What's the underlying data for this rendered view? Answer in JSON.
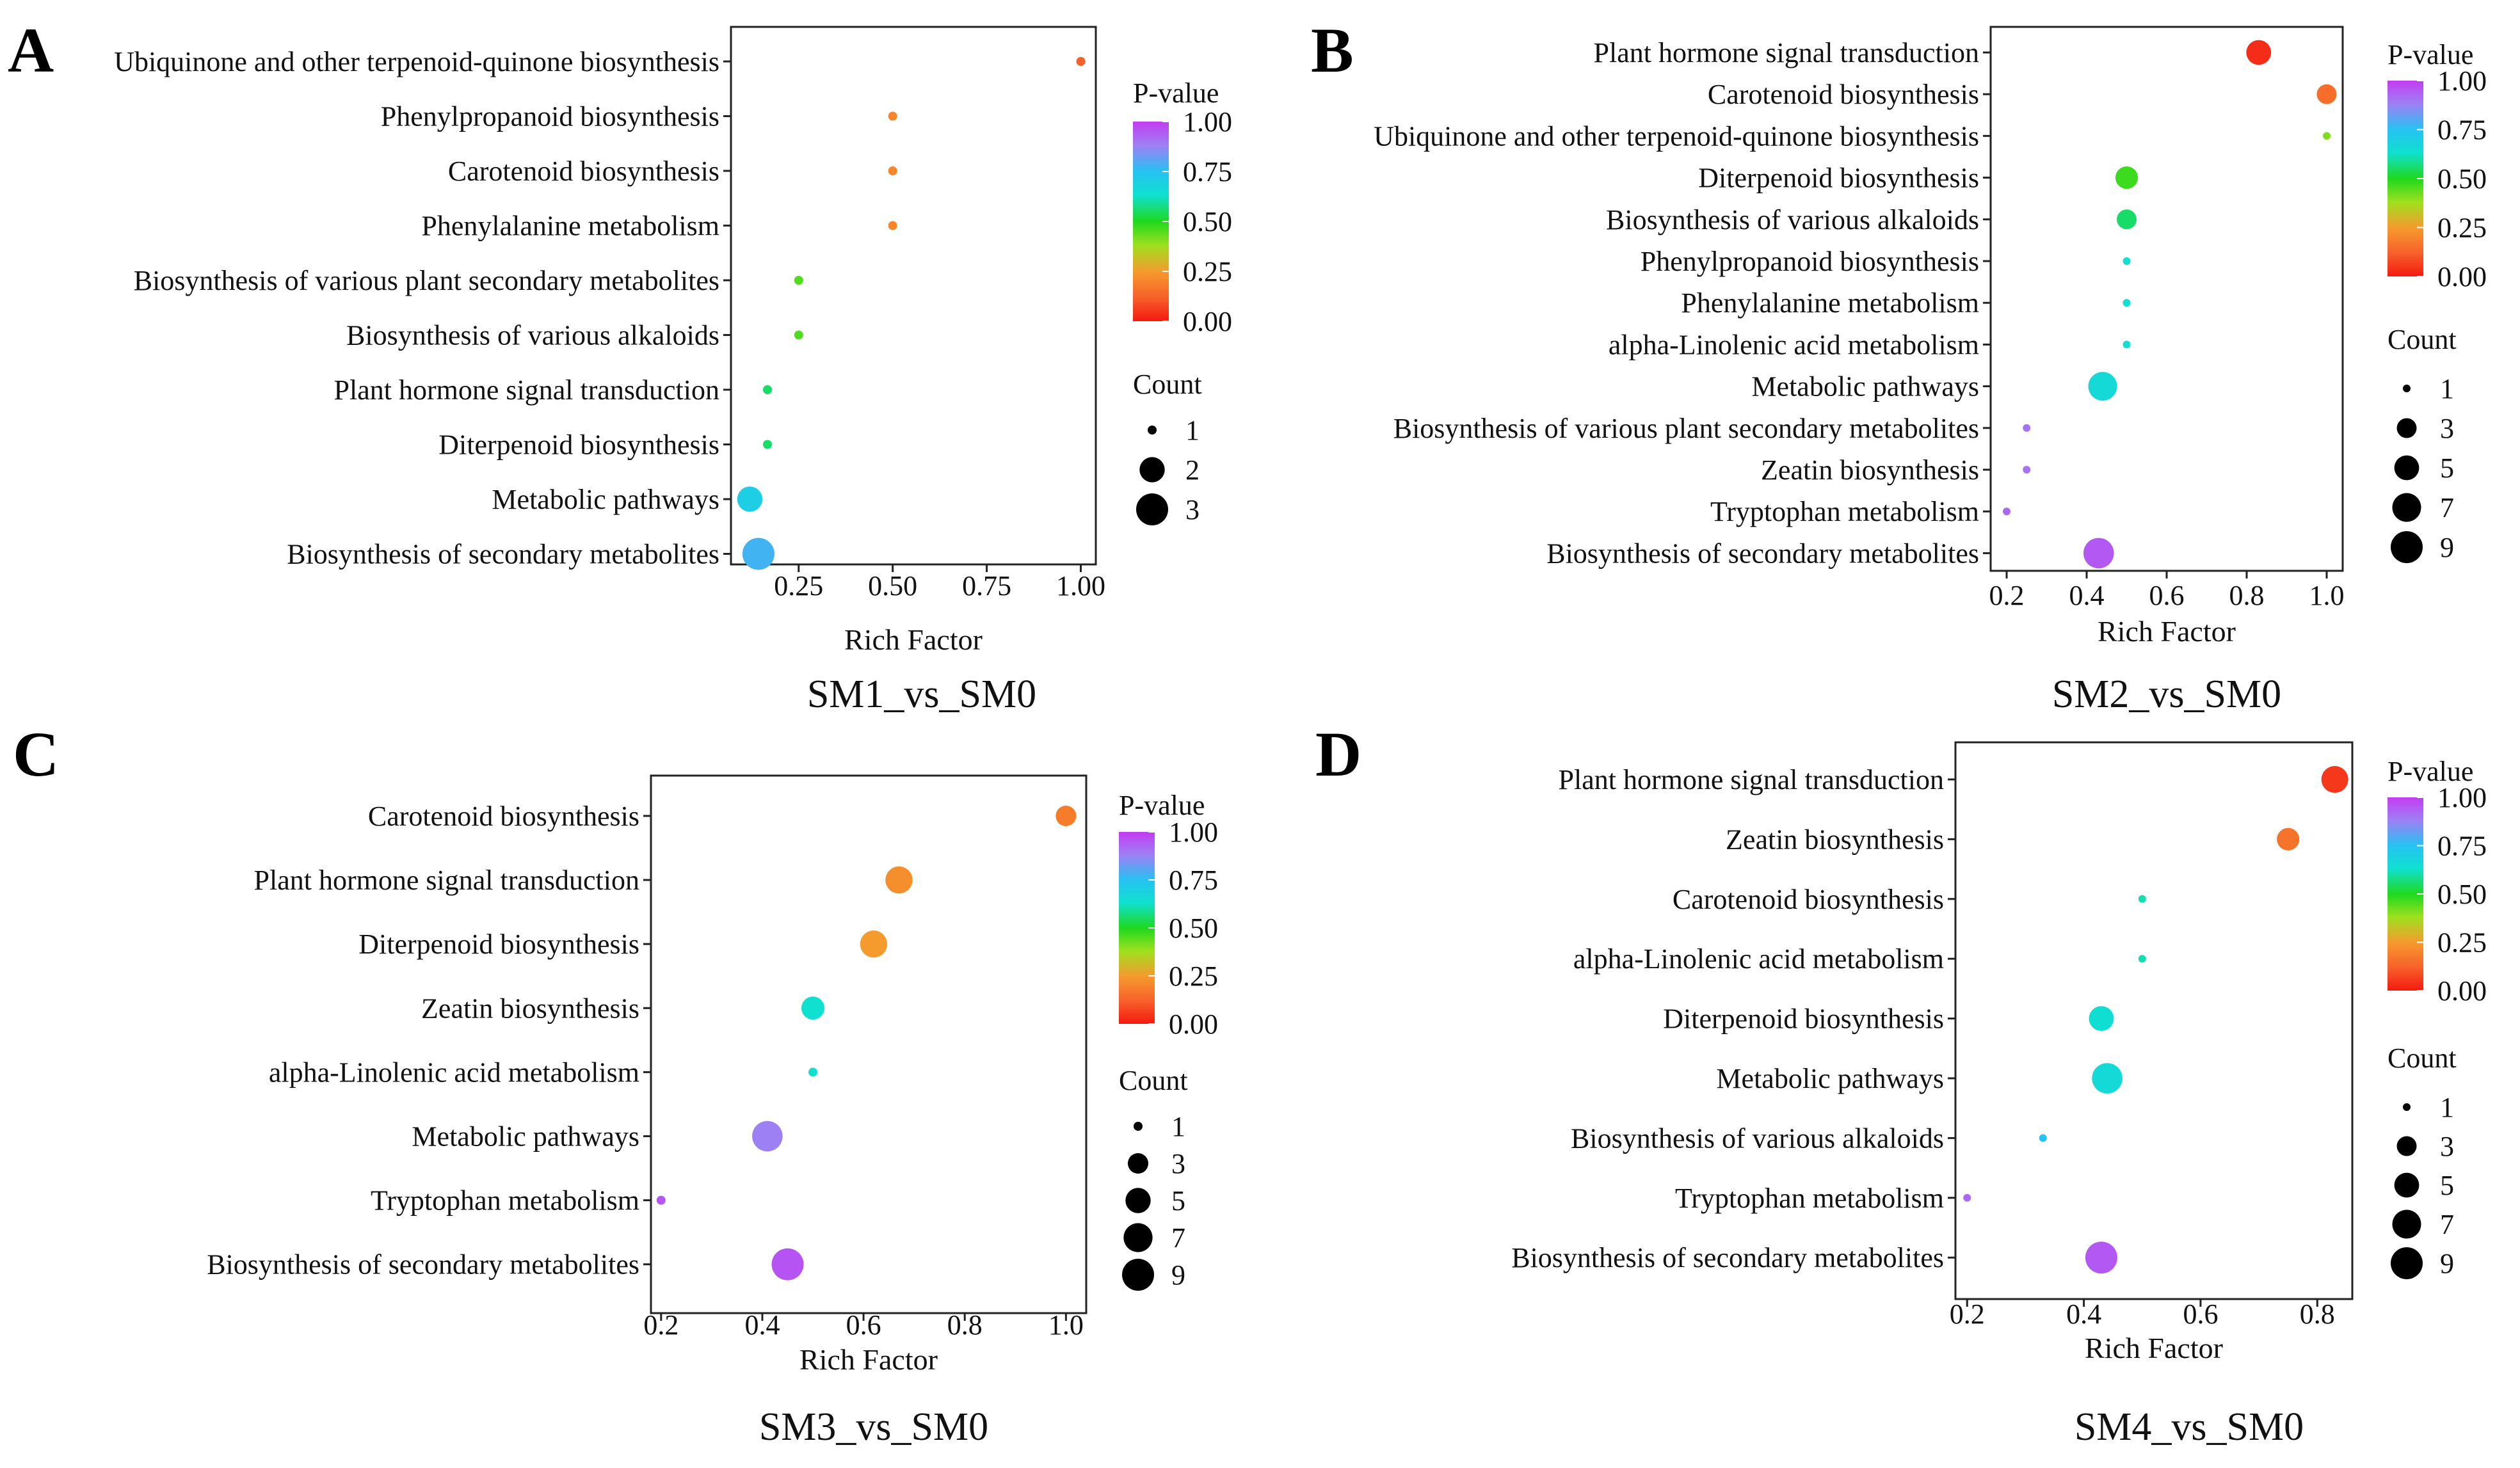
{
  "figure": {
    "count_legend_title": "Count",
    "pvalue_legend_title": "P-value",
    "x_axis_label": "Rich Factor",
    "colorbar_ticks": [
      "1.00",
      "0.75",
      "0.50",
      "0.25",
      "0.00"
    ]
  },
  "chart_data": [
    {
      "type": "scatter",
      "panel": "A",
      "title": "SM1_vs_SM0",
      "xlabel": "Rich Factor",
      "ylabel": "",
      "xlim": [
        0.07,
        1.04
      ],
      "x_ticks": [
        "0.25",
        "0.50",
        "0.75",
        "1.00"
      ],
      "x_tick_values": [
        0.25,
        0.5,
        0.75,
        1.0
      ],
      "count_legend": [
        "1",
        "2",
        "3"
      ],
      "count_legend_values": [
        1,
        2,
        3
      ],
      "count_max": 3,
      "categories": [
        "Ubiquinone and other terpenoid-quinone biosynthesis",
        "Phenylpropanoid biosynthesis",
        "Carotenoid biosynthesis",
        "Phenylalanine metabolism",
        "Biosynthesis of various plant secondary metabolites",
        "Biosynthesis of various alkaloids",
        "Plant hormone signal transduction",
        "Diterpenoid biosynthesis",
        "Metabolic pathways",
        "Biosynthesis of secondary metabolites"
      ],
      "rich_factor": [
        1.0,
        0.5,
        0.5,
        0.5,
        0.25,
        0.25,
        0.167,
        0.167,
        0.12,
        0.143
      ],
      "count": [
        1,
        1,
        1,
        1,
        1,
        1,
        1,
        1,
        2,
        3
      ],
      "p_value": [
        0.12,
        0.2,
        0.2,
        0.2,
        0.45,
        0.45,
        0.55,
        0.55,
        0.7,
        0.78
      ]
    },
    {
      "type": "scatter",
      "panel": "B",
      "title": "SM2_vs_SM0",
      "xlabel": "Rich Factor",
      "ylabel": "",
      "xlim": [
        0.16,
        1.04
      ],
      "x_ticks": [
        "0.2",
        "0.4",
        "0.6",
        "0.8",
        "1.0"
      ],
      "x_tick_values": [
        0.2,
        0.4,
        0.6,
        0.8,
        1.0
      ],
      "count_legend": [
        "1",
        "3",
        "5",
        "7",
        "9"
      ],
      "count_legend_values": [
        1,
        3,
        5,
        7,
        9
      ],
      "count_max": 9,
      "categories": [
        "Plant hormone signal transduction",
        "Carotenoid biosynthesis",
        "Ubiquinone and other terpenoid-quinone biosynthesis",
        "Diterpenoid biosynthesis",
        "Biosynthesis of various alkaloids",
        "Phenylpropanoid biosynthesis",
        "Phenylalanine metabolism",
        "alpha-Linolenic acid metabolism",
        "Metabolic pathways",
        "Biosynthesis of various plant secondary metabolites",
        "Zeatin biosynthesis",
        "Tryptophan metabolism",
        "Biosynthesis of secondary metabolites"
      ],
      "rich_factor": [
        0.83,
        1.0,
        1.0,
        0.5,
        0.5,
        0.5,
        0.5,
        0.5,
        0.44,
        0.25,
        0.25,
        0.2,
        0.43
      ],
      "count": [
        5,
        3,
        1,
        4,
        3,
        1,
        1,
        1,
        7,
        1,
        1,
        1,
        8
      ],
      "p_value": [
        0.03,
        0.15,
        0.4,
        0.47,
        0.55,
        0.62,
        0.62,
        0.62,
        0.65,
        0.9,
        0.9,
        0.92,
        0.95
      ]
    },
    {
      "type": "scatter",
      "panel": "C",
      "title": "SM3_vs_SM0",
      "xlabel": "Rich Factor",
      "ylabel": "",
      "xlim": [
        0.18,
        1.04
      ],
      "x_ticks": [
        "0.2",
        "0.4",
        "0.6",
        "0.8",
        "1.0"
      ],
      "x_tick_values": [
        0.2,
        0.4,
        0.6,
        0.8,
        1.0
      ],
      "count_legend": [
        "1",
        "3",
        "5",
        "7",
        "9"
      ],
      "count_legend_values": [
        1,
        3,
        5,
        7,
        9
      ],
      "count_max": 9,
      "categories": [
        "Carotenoid biosynthesis",
        "Plant hormone signal transduction",
        "Diterpenoid biosynthesis",
        "Zeatin biosynthesis",
        "alpha-Linolenic acid metabolism",
        "Metabolic pathways",
        "Tryptophan metabolism",
        "Biosynthesis of secondary metabolites"
      ],
      "rich_factor": [
        1.0,
        0.67,
        0.62,
        0.5,
        0.5,
        0.41,
        0.2,
        0.45
      ],
      "count": [
        3,
        6,
        6,
        4,
        1,
        8,
        1,
        9
      ],
      "p_value": [
        0.18,
        0.22,
        0.25,
        0.62,
        0.62,
        0.88,
        0.95,
        0.96
      ]
    },
    {
      "type": "scatter",
      "panel": "D",
      "title": "SM4_vs_SM0",
      "xlabel": "Rich Factor",
      "ylabel": "",
      "xlim": [
        0.18,
        0.86
      ],
      "x_ticks": [
        "0.2",
        "0.4",
        "0.6",
        "0.8"
      ],
      "x_tick_values": [
        0.2,
        0.4,
        0.6,
        0.8
      ],
      "count_legend": [
        "1",
        "3",
        "5",
        "7",
        "9"
      ],
      "count_legend_values": [
        1,
        3,
        5,
        7,
        9
      ],
      "count_max": 9,
      "categories": [
        "Plant hormone signal transduction",
        "Zeatin biosynthesis",
        "Carotenoid biosynthesis",
        "alpha-Linolenic acid metabolism",
        "Diterpenoid biosynthesis",
        "Metabolic pathways",
        "Biosynthesis of various alkaloids",
        "Tryptophan metabolism",
        "Biosynthesis of secondary metabolites"
      ],
      "rich_factor": [
        0.83,
        0.75,
        0.5,
        0.5,
        0.43,
        0.44,
        0.33,
        0.2,
        0.43
      ],
      "count": [
        6,
        4,
        1,
        1,
        5,
        8,
        1,
        1,
        9
      ],
      "p_value": [
        0.05,
        0.16,
        0.6,
        0.6,
        0.63,
        0.65,
        0.75,
        0.92,
        0.95
      ]
    }
  ]
}
